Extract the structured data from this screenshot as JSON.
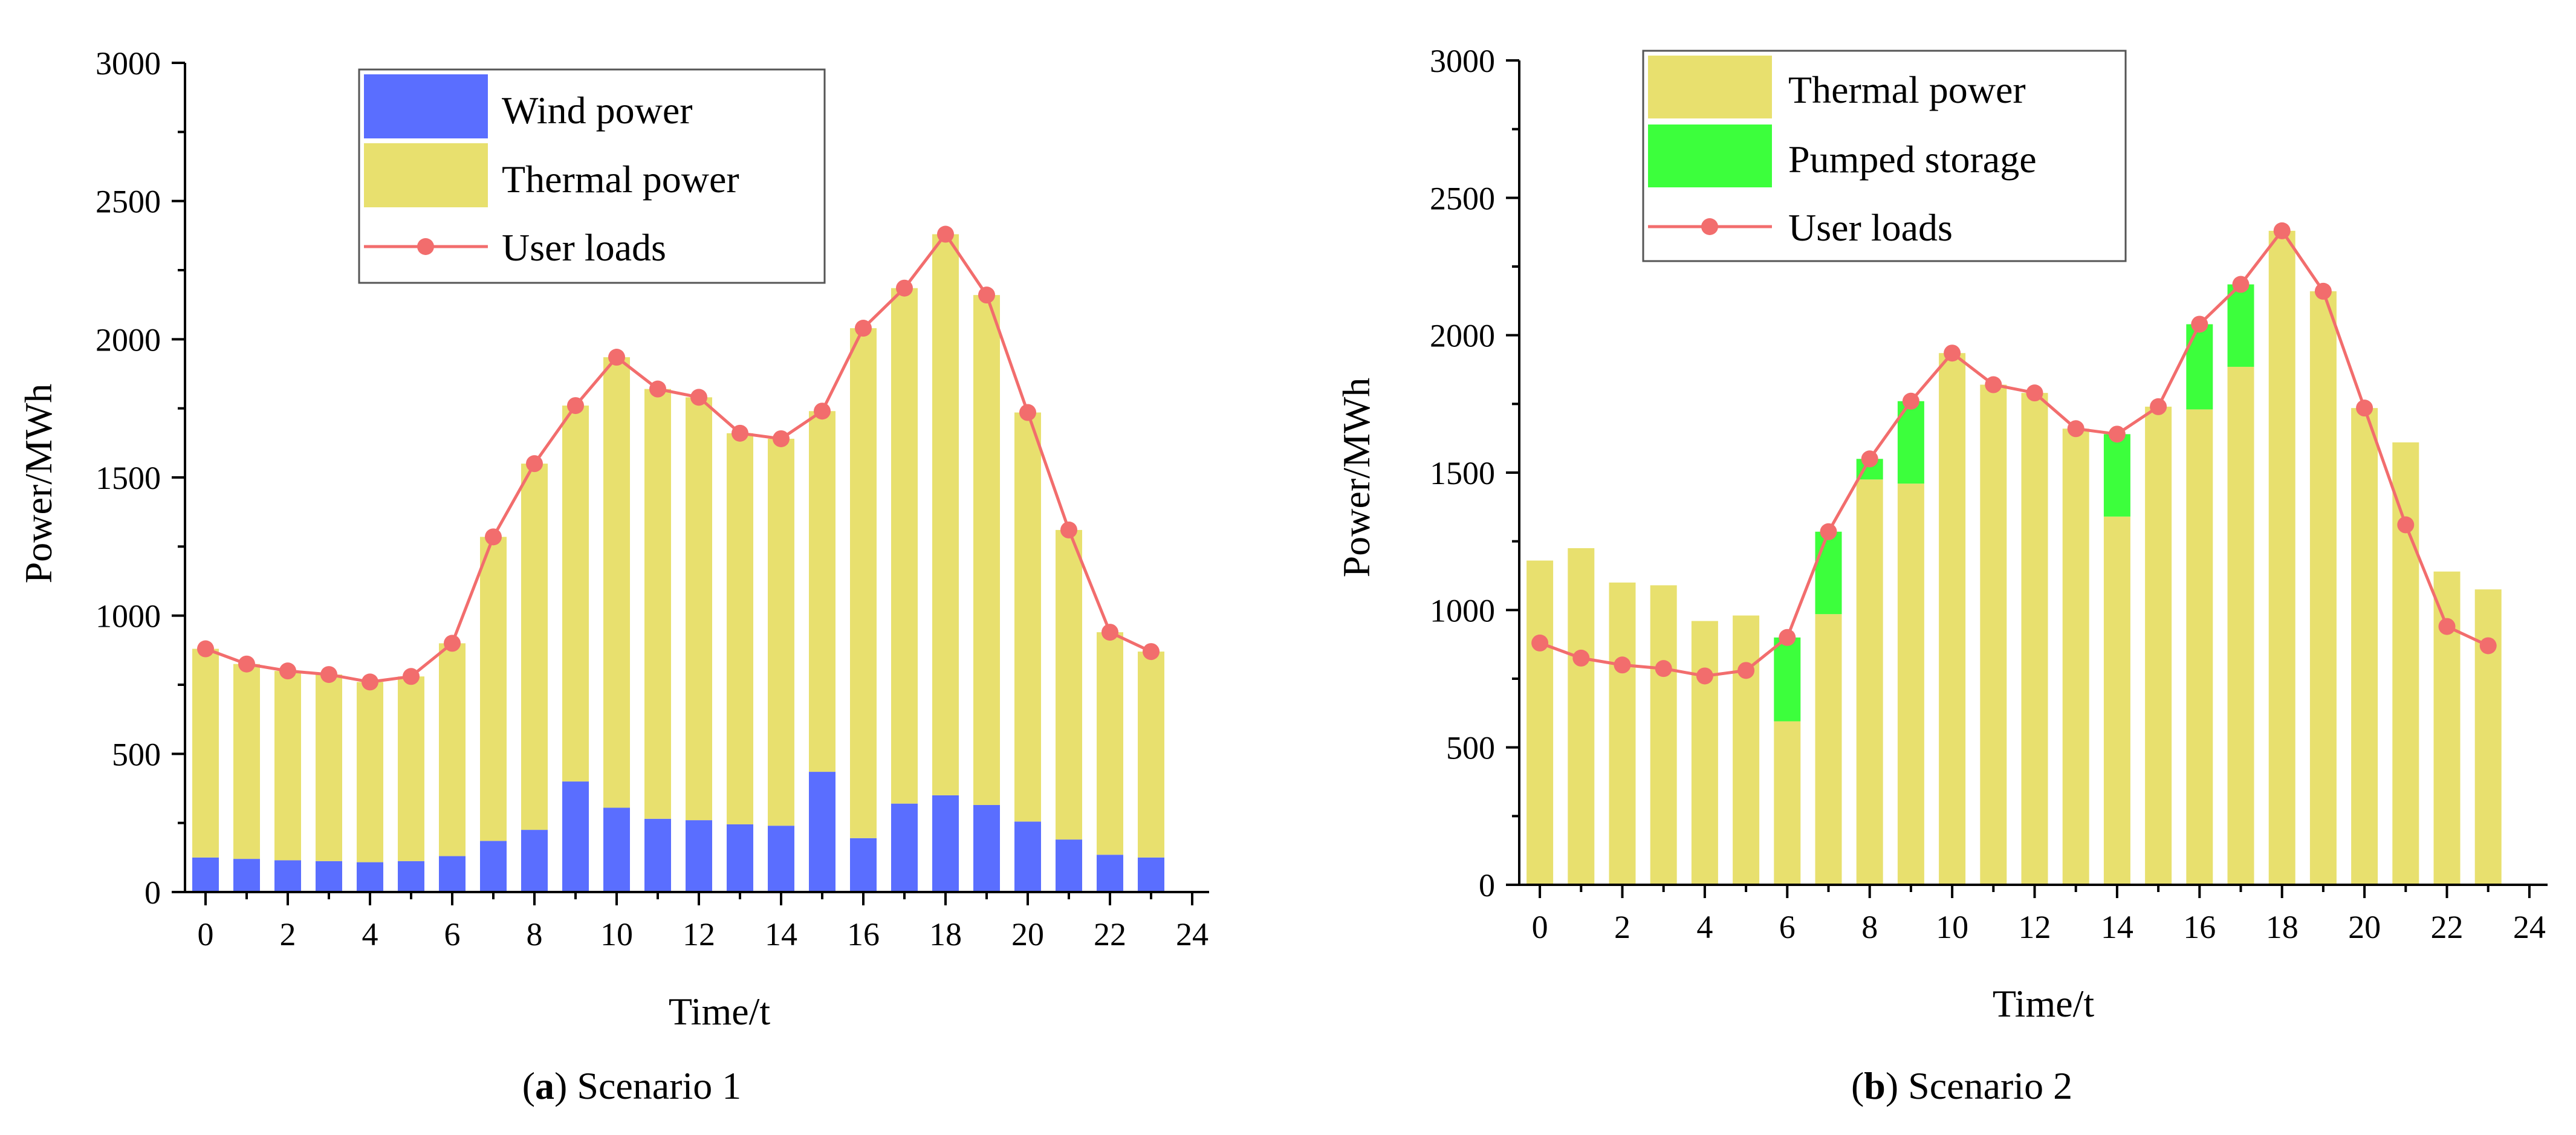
{
  "colors": {
    "wind": "#5A6EFF",
    "thermal": "#E8E06E",
    "pumped": "#3CFF3C",
    "loads": "#F26D6D",
    "axis": "#000000"
  },
  "chart_data": [
    {
      "type": "bar",
      "panel": "a",
      "stacked": true,
      "caption_letter": "a",
      "caption_text": "Scenario 1",
      "caption_open": "(",
      "caption_close": ")",
      "xlabel": "Time/t",
      "ylabel": "Power/MWh",
      "xlim": [
        -0.5,
        24
      ],
      "ylim": [
        0,
        3000
      ],
      "x_ticks": [
        0,
        2,
        4,
        6,
        8,
        10,
        12,
        14,
        16,
        18,
        20,
        22,
        24
      ],
      "y_ticks": [
        0,
        500,
        1000,
        1500,
        2000,
        2500,
        3000
      ],
      "x_tick_labels": [
        "0",
        "2",
        "4",
        "6",
        "8",
        "10",
        "12",
        "14",
        "16",
        "18",
        "20",
        "22",
        "24"
      ],
      "y_tick_labels": [
        "0",
        "500",
        "1000",
        "1500",
        "2000",
        "2500",
        "3000"
      ],
      "legend_position": "top-center",
      "categories": [
        0,
        1,
        2,
        3,
        4,
        5,
        6,
        7,
        8,
        9,
        10,
        11,
        12,
        13,
        14,
        15,
        16,
        17,
        18,
        19,
        20,
        21,
        22,
        23
      ],
      "series": [
        {
          "name": "Wind power",
          "kind": "bar",
          "color_key": "wind",
          "values": [
            125,
            120,
            115,
            112,
            108,
            112,
            130,
            185,
            225,
            400,
            305,
            265,
            260,
            245,
            240,
            435,
            195,
            320,
            350,
            315,
            255,
            190,
            135,
            125
          ]
        },
        {
          "name": "Thermal power",
          "kind": "bar",
          "color_key": "thermal",
          "values": [
            755,
            705,
            685,
            675,
            652,
            668,
            770,
            1100,
            1325,
            1360,
            1630,
            1555,
            1530,
            1415,
            1400,
            1305,
            1845,
            1865,
            2030,
            1845,
            1480,
            1120,
            805,
            745
          ]
        },
        {
          "name": "User loads",
          "kind": "line",
          "color_key": "loads",
          "values": [
            880,
            825,
            800,
            787,
            760,
            780,
            900,
            1285,
            1550,
            1760,
            1935,
            1820,
            1790,
            1660,
            1640,
            1740,
            2040,
            2185,
            2380,
            2160,
            1735,
            1310,
            940,
            870
          ]
        }
      ]
    },
    {
      "type": "bar",
      "panel": "b",
      "stacked": true,
      "caption_letter": "b",
      "caption_text": "Scenario 2",
      "caption_open": "(",
      "caption_close": ")",
      "xlabel": "Time/t",
      "ylabel": "Power/MWh",
      "xlim": [
        -0.5,
        24
      ],
      "ylim": [
        0,
        3000
      ],
      "x_ticks": [
        0,
        2,
        4,
        6,
        8,
        10,
        12,
        14,
        16,
        18,
        20,
        22,
        24
      ],
      "y_ticks": [
        0,
        500,
        1000,
        1500,
        2000,
        2500,
        3000
      ],
      "x_tick_labels": [
        "0",
        "2",
        "4",
        "6",
        "8",
        "10",
        "12",
        "14",
        "16",
        "18",
        "20",
        "22",
        "24"
      ],
      "y_tick_labels": [
        "0",
        "500",
        "1000",
        "1500",
        "2000",
        "2500",
        "3000"
      ],
      "legend_position": "top-left",
      "categories": [
        0,
        1,
        2,
        3,
        4,
        5,
        6,
        7,
        8,
        9,
        10,
        11,
        12,
        13,
        14,
        15,
        16,
        17,
        18,
        19,
        20,
        21,
        22,
        23
      ],
      "series": [
        {
          "name": "Thermal power",
          "kind": "bar",
          "color_key": "thermal",
          "values": [
            1180,
            1225,
            1100,
            1090,
            960,
            980,
            595,
            985,
            1475,
            1460,
            1935,
            1820,
            1790,
            1660,
            1340,
            1740,
            1730,
            1885,
            2380,
            2160,
            1735,
            1610,
            1140,
            1075
          ]
        },
        {
          "name": "Pumped storage",
          "kind": "bar",
          "color_key": "pumped",
          "values": [
            0,
            0,
            0,
            0,
            0,
            0,
            305,
            300,
            75,
            300,
            0,
            0,
            0,
            0,
            300,
            0,
            310,
            300,
            0,
            0,
            0,
            0,
            0,
            0
          ]
        },
        {
          "name": "User loads",
          "kind": "line",
          "color_key": "loads",
          "values": [
            880,
            825,
            800,
            787,
            760,
            780,
            900,
            1285,
            1550,
            1760,
            1935,
            1820,
            1790,
            1660,
            1640,
            1740,
            2040,
            2185,
            2380,
            2160,
            1735,
            1310,
            940,
            870
          ]
        }
      ]
    }
  ]
}
